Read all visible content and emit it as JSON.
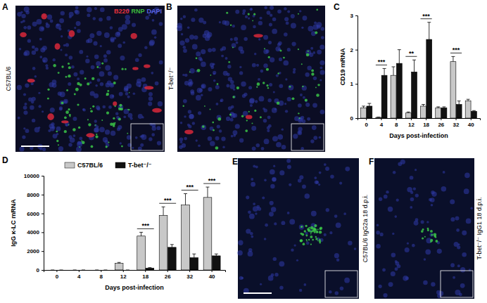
{
  "figure": {
    "panels": [
      {
        "label": "A",
        "side_label": "C57BL/6",
        "stains": [
          {
            "text": "B220",
            "color": "#e8323c"
          },
          {
            "text": "RNP",
            "color": "#3dbb3d"
          },
          {
            "text": "DAPI",
            "color": "#5a64e0"
          }
        ]
      },
      {
        "label": "B",
        "side_label": "T-bet⁻/⁻"
      },
      {
        "label": "C"
      },
      {
        "label": "D"
      },
      {
        "label": "E",
        "side_label": "C57BL/6 IgG2a 18 d.p.i."
      },
      {
        "label": "F",
        "side_label": "T-bet⁻/⁻ IgG1 18 d.p.i."
      }
    ]
  },
  "chart_data": [
    {
      "type": "bar",
      "x_label": "Days post-infection",
      "y_label": "CD19 mRNA",
      "categories": [
        "0",
        "4",
        "8",
        "12",
        "18",
        "26",
        "32",
        "40"
      ],
      "ylim": [
        0,
        3
      ],
      "yticks": [
        0,
        1,
        2,
        3
      ],
      "series": [
        {
          "color": "#c8c8c8",
          "values": [
            0.3,
            0.02,
            1.25,
            0.15,
            0.35,
            0.3,
            1.65,
            0.5
          ],
          "errors": [
            0.05,
            0.01,
            0.25,
            0.03,
            0.05,
            0.03,
            0.15,
            0.05
          ]
        },
        {
          "color": "#111111",
          "values": [
            0.35,
            1.25,
            1.6,
            1.35,
            2.3,
            0.3,
            0.4,
            0.2
          ],
          "errors": [
            0.08,
            0.2,
            0.4,
            0.35,
            0.5,
            0.03,
            0.1,
            0.02
          ]
        }
      ],
      "annotations": [
        {
          "category": "4",
          "text": "***"
        },
        {
          "category": "12",
          "text": "**"
        },
        {
          "category": "18",
          "text": "***"
        },
        {
          "category": "32",
          "text": "***"
        }
      ]
    },
    {
      "type": "bar",
      "x_label": "Days post-infection",
      "y_label": "IgG κ-LC mRNA",
      "categories": [
        "0",
        "4",
        "8",
        "12",
        "18",
        "26",
        "32",
        "40"
      ],
      "ylim": [
        0,
        10000
      ],
      "yticks": [
        0,
        2000,
        4000,
        6000,
        8000,
        10000
      ],
      "legend": "top",
      "series": [
        {
          "name": "C57BL/6",
          "color": "#c8c8c8",
          "values": [
            0,
            0,
            0,
            700,
            3600,
            5800,
            6900,
            7700
          ],
          "errors": [
            0,
            0,
            0,
            100,
            400,
            900,
            1200,
            1100
          ]
        },
        {
          "name": "T-bet⁻/⁻",
          "color": "#111111",
          "values": [
            0,
            0,
            0,
            0,
            200,
            2400,
            1300,
            1500
          ],
          "errors": [
            0,
            0,
            0,
            0,
            50,
            300,
            400,
            200
          ]
        }
      ],
      "annotations": [
        {
          "category": "18",
          "text": "***"
        },
        {
          "category": "26",
          "text": "***"
        },
        {
          "category": "32",
          "text": "***"
        },
        {
          "category": "40",
          "text": "***"
        }
      ]
    }
  ]
}
